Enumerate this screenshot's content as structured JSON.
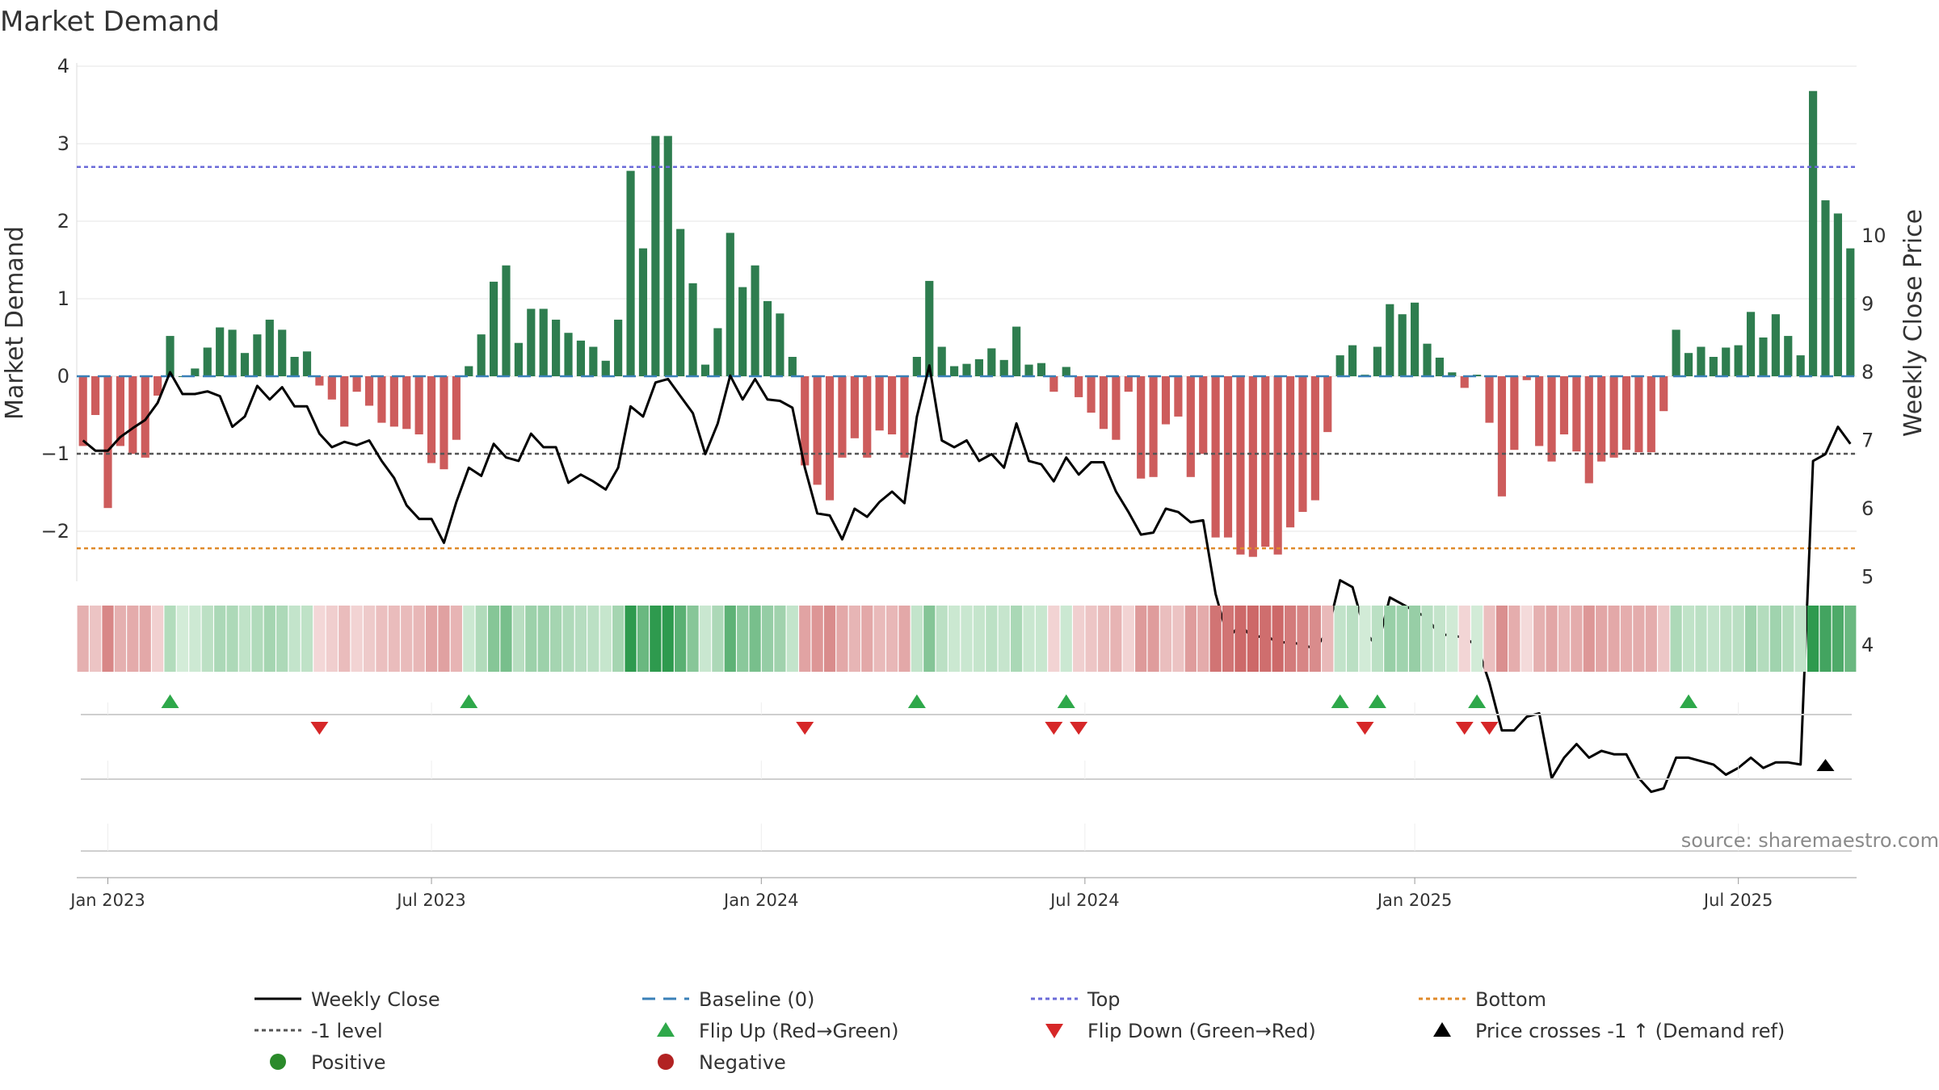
{
  "chart_data": {
    "type": "bar",
    "title": "Market Demand",
    "ylabel": "Market Demand",
    "y2label": "Weekly Close Price",
    "ylim": [
      -2.65,
      4.0
    ],
    "y2lim": [
      3.0,
      10.5
    ],
    "yticks": [
      4,
      3,
      2,
      1,
      0,
      -1,
      -2
    ],
    "y2ticks": [
      10,
      9,
      8,
      7,
      6,
      5,
      4
    ],
    "xticks": [
      {
        "label": "Jan 2023",
        "week": 2
      },
      {
        "label": "Jul 2023",
        "week": 28
      },
      {
        "label": "Jan 2024",
        "week": 54.5
      },
      {
        "label": "Jul 2024",
        "week": 80.5
      },
      {
        "label": "Jan 2025",
        "week": 107
      },
      {
        "label": "Jul 2025",
        "week": 133
      }
    ],
    "levels": {
      "top": 2.7,
      "minus_one": -1.0,
      "bottom": -2.22,
      "baseline": 0
    },
    "demand": [
      -0.9,
      -0.5,
      -1.7,
      -0.9,
      -1.0,
      -1.05,
      -0.25,
      0.52,
      0.0,
      0.1,
      0.37,
      0.63,
      0.6,
      0.3,
      0.54,
      0.73,
      0.6,
      0.25,
      0.32,
      -0.12,
      -0.3,
      -0.65,
      -0.2,
      -0.38,
      -0.6,
      -0.65,
      -0.68,
      -0.75,
      -1.12,
      -1.2,
      -0.82,
      0.13,
      0.54,
      1.22,
      1.43,
      0.43,
      0.87,
      0.87,
      0.73,
      0.56,
      0.46,
      0.38,
      0.2,
      0.73,
      2.65,
      1.65,
      3.1,
      3.1,
      1.9,
      1.2,
      0.15,
      0.62,
      1.85,
      1.15,
      1.43,
      0.97,
      0.81,
      0.25,
      -1.15,
      -1.4,
      -1.6,
      -1.05,
      -0.8,
      -1.05,
      -0.7,
      -0.75,
      -1.05,
      0.25,
      1.23,
      0.38,
      0.13,
      0.16,
      0.22,
      0.36,
      0.21,
      0.64,
      0.15,
      0.17,
      -0.2,
      0.12,
      -0.27,
      -0.47,
      -0.68,
      -0.82,
      -0.2,
      -1.32,
      -1.3,
      -0.62,
      -0.52,
      -1.3,
      -1.0,
      -2.08,
      -2.08,
      -2.3,
      -2.33,
      -2.2,
      -2.3,
      -1.95,
      -1.75,
      -1.6,
      -0.72,
      0.27,
      0.4,
      0.02,
      0.38,
      0.93,
      0.8,
      0.95,
      0.42,
      0.24,
      0.05,
      -0.15,
      0.02,
      -0.6,
      -1.55,
      -0.95,
      -0.05,
      -0.9,
      -1.1,
      -0.75,
      -0.97,
      -1.38,
      -1.1,
      -1.05,
      -0.95,
      -0.98,
      -0.98,
      -0.45,
      0.6,
      0.3,
      0.38,
      0.25,
      0.37,
      0.4,
      0.83,
      0.5,
      0.8,
      0.52,
      0.27,
      3.68,
      2.27,
      2.1,
      1.65
    ],
    "price": [
      7.0,
      6.85,
      6.85,
      7.05,
      7.18,
      7.3,
      7.55,
      8.0,
      7.68,
      7.68,
      7.72,
      7.65,
      7.2,
      7.35,
      7.8,
      7.6,
      7.78,
      7.5,
      7.5,
      7.1,
      6.9,
      6.98,
      6.93,
      7.0,
      6.7,
      6.45,
      6.05,
      5.85,
      5.85,
      5.5,
      6.1,
      6.6,
      6.48,
      6.95,
      6.75,
      6.7,
      7.1,
      6.9,
      6.9,
      6.38,
      6.5,
      6.4,
      6.28,
      6.6,
      7.5,
      7.35,
      7.85,
      7.9,
      7.65,
      7.4,
      6.8,
      7.25,
      7.95,
      7.6,
      7.9,
      7.6,
      7.58,
      7.48,
      6.6,
      5.93,
      5.9,
      5.55,
      6.0,
      5.88,
      6.1,
      6.25,
      6.08,
      7.35,
      8.1,
      7.0,
      6.9,
      7.0,
      6.7,
      6.8,
      6.6,
      7.25,
      6.7,
      6.65,
      6.4,
      6.75,
      6.5,
      6.68,
      6.68,
      6.25,
      5.95,
      5.62,
      5.65,
      6.0,
      5.95,
      5.8,
      5.83,
      4.75,
      4.1,
      4.3,
      4.1,
      4.15,
      4.03,
      4.05,
      4.0,
      3.95,
      4.2,
      4.95,
      4.85,
      4.2,
      3.97,
      4.7,
      4.6,
      4.5,
      4.4,
      4.15,
      4.15,
      4.1,
      4.0,
      3.45,
      2.75,
      2.75,
      2.95,
      3.0,
      2.05,
      2.35,
      2.55,
      2.35,
      2.45,
      2.4,
      2.4,
      2.05,
      1.85,
      1.9,
      2.35,
      2.35,
      2.3,
      2.25,
      2.1,
      2.2,
      2.35,
      2.2,
      2.28,
      2.28,
      2.25,
      6.7,
      6.8,
      7.2,
      6.95
    ],
    "flip_up": [
      7,
      31,
      67,
      79,
      101,
      104,
      112,
      129
    ],
    "flip_down": [
      19,
      58,
      78,
      80,
      103,
      111,
      113
    ],
    "price_cross": [
      140
    ],
    "source": "source: sharemaestro.com",
    "legend": [
      {
        "label": "Weekly Close",
        "marker": "line-solid",
        "color": "#000000"
      },
      {
        "label": "Baseline (0)",
        "marker": "line-dash",
        "color": "#3a80b8"
      },
      {
        "label": "Top",
        "marker": "line-dot",
        "color": "#6a6ad8"
      },
      {
        "label": "Bottom",
        "marker": "line-dot",
        "color": "#e08a2a"
      },
      {
        "label": "-1 level",
        "marker": "line-dot",
        "color": "#555555"
      },
      {
        "label": "Flip Up (Red→Green)",
        "marker": "triangle-up",
        "color": "#2ea84a"
      },
      {
        "label": "Flip Down (Green→Red)",
        "marker": "triangle-down",
        "color": "#d62728"
      },
      {
        "label": "Price crosses -1 ↑ (Demand ref)",
        "marker": "triangle-up",
        "color": "#000000"
      },
      {
        "label": "Positive",
        "marker": "circle",
        "color": "#2a8a2a"
      },
      {
        "label": "Negative",
        "marker": "circle",
        "color": "#b22222"
      }
    ],
    "colors": {
      "positive_bar": "#2e7d4f",
      "negative_bar": "#cd5c5c",
      "price_line": "#000000"
    }
  }
}
